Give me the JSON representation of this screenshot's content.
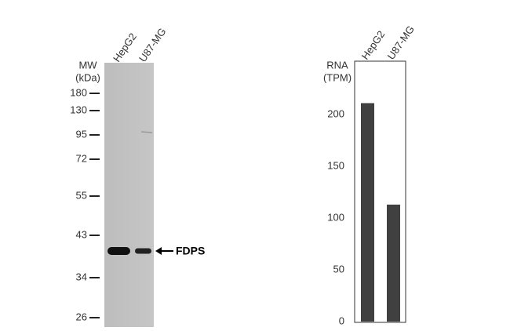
{
  "blot": {
    "mw_title": "MW",
    "mw_unit": "(kDa)",
    "lanes": [
      "HepG2",
      "U87-MG"
    ],
    "markers": [
      "180",
      "130",
      "95",
      "72",
      "55",
      "43",
      "34",
      "26"
    ],
    "target": "FDPS"
  },
  "chart_data": {
    "type": "bar",
    "ylabel": [
      "RNA",
      "(TPM)"
    ],
    "categories": [
      "HepG2",
      "U87-MG"
    ],
    "values": [
      211,
      113
    ],
    "color": "#404040",
    "ylim": [
      0,
      250
    ],
    "yticks": [
      0,
      50,
      100,
      150,
      200
    ],
    "grid": false
  }
}
